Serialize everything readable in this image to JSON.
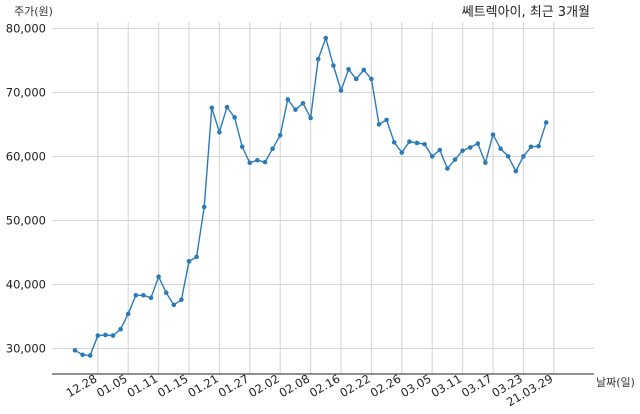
{
  "chart_data": {
    "type": "line",
    "title": "쎄트렉아이, 최근 3개월",
    "ylabel": "주가(원)",
    "xlabel": "날짜(일)",
    "ylim": [
      26000,
      81000
    ],
    "yticks": [
      30000,
      40000,
      50000,
      60000,
      70000,
      80000
    ],
    "ytick_labels": [
      "30,000",
      "40,000",
      "50,000",
      "60,000",
      "70,000",
      "80,000"
    ],
    "xtick_labels": [
      "12.28",
      "01.05",
      "01.11",
      "01.15",
      "01.21",
      "01.27",
      "02.02",
      "02.08",
      "02.16",
      "02.22",
      "02.26",
      "03.05",
      "03.11",
      "03.17",
      "03.23",
      "21.03.29"
    ],
    "xtick_index": [
      3,
      7,
      11,
      15,
      19,
      23,
      27,
      31,
      35,
      39,
      43,
      47,
      51,
      55,
      59,
      63
    ],
    "grid": true,
    "color": "#2b7bb9",
    "series": [
      {
        "values": [
          29700,
          29000,
          28900,
          32000,
          32100,
          32000,
          33000,
          35400,
          38300,
          38300,
          37900,
          41200,
          38700,
          36800,
          37600,
          43600,
          44300,
          52100,
          67600,
          63800,
          67700,
          66100,
          61500,
          59000,
          59400,
          59100,
          61200,
          63300,
          68900,
          67300,
          68300,
          66000,
          75200,
          78500,
          74200,
          70300,
          73600,
          72100,
          73500,
          72100,
          65000,
          65700,
          62200,
          60600,
          62300,
          62100,
          61900,
          60000,
          61000,
          58100,
          59500,
          60900,
          61400,
          62000,
          59000,
          63400,
          61200,
          60000,
          57700,
          60000,
          61500,
          61600,
          65300
        ]
      }
    ]
  }
}
